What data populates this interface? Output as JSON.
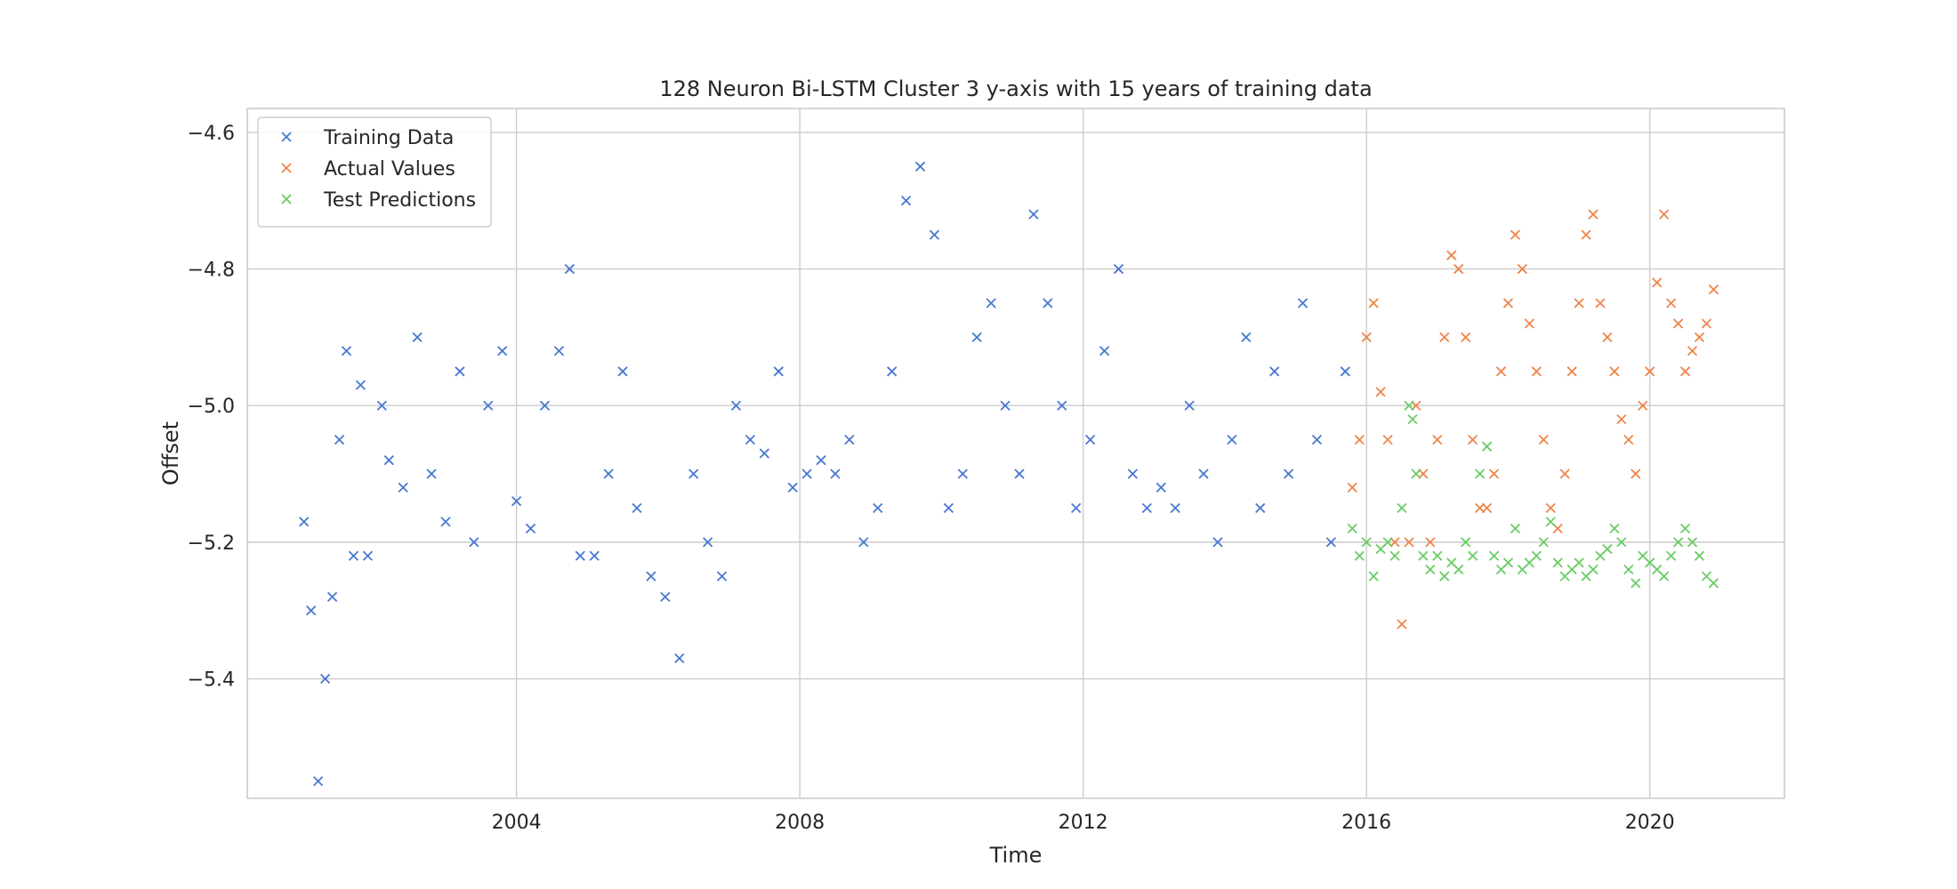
{
  "chart_data": {
    "type": "scatter",
    "title": "128 Neuron Bi-LSTM Cluster 3 y-axis with 15 years of training data",
    "xlabel": "Time",
    "ylabel": "Offset",
    "xlim": [
      2000.2,
      2021.9
    ],
    "ylim": [
      -5.575,
      -4.565
    ],
    "xticks": [
      2004,
      2008,
      2012,
      2016,
      2020
    ],
    "xtick_labels": [
      "2004",
      "2008",
      "2012",
      "2016",
      "2020"
    ],
    "yticks": [
      -4.6,
      -4.8,
      -5.0,
      -5.2,
      -5.4
    ],
    "ytick_labels": [
      "−4.6",
      "−4.8",
      "−5.0",
      "−5.2",
      "−5.4"
    ],
    "grid": true,
    "legend_position": "top-left",
    "marker": "x",
    "series": [
      {
        "name": "Training Data",
        "color": "#4878d0",
        "x": [
          2001.0,
          2001.1,
          2001.2,
          2001.3,
          2001.4,
          2001.5,
          2001.6,
          2001.7,
          2001.8,
          2001.9,
          2002.1,
          2002.2,
          2002.4,
          2002.6,
          2002.8,
          2003.0,
          2003.2,
          2003.4,
          2003.6,
          2003.8,
          2004.0,
          2004.2,
          2004.4,
          2004.6,
          2004.75,
          2004.9,
          2005.1,
          2005.3,
          2005.5,
          2005.7,
          2005.9,
          2006.1,
          2006.3,
          2006.5,
          2006.7,
          2006.9,
          2007.1,
          2007.3,
          2007.5,
          2007.7,
          2007.9,
          2008.1,
          2008.3,
          2008.5,
          2008.7,
          2008.9,
          2009.1,
          2009.3,
          2009.5,
          2009.7,
          2009.9,
          2010.1,
          2010.3,
          2010.5,
          2010.7,
          2010.9,
          2011.1,
          2011.3,
          2011.5,
          2011.7,
          2011.9,
          2012.1,
          2012.3,
          2012.5,
          2012.7,
          2012.9,
          2013.1,
          2013.3,
          2013.5,
          2013.7,
          2013.9,
          2014.1,
          2014.3,
          2014.5,
          2014.7,
          2014.9,
          2015.1,
          2015.3,
          2015.5,
          2015.7
        ],
        "y": [
          -5.17,
          -5.3,
          -5.55,
          -5.4,
          -5.28,
          -5.05,
          -4.92,
          -5.22,
          -4.97,
          -5.22,
          -5.0,
          -5.08,
          -5.12,
          -4.9,
          -5.1,
          -5.17,
          -4.95,
          -5.2,
          -5.0,
          -4.92,
          -5.14,
          -5.18,
          -5.0,
          -4.92,
          -4.8,
          -5.22,
          -5.22,
          -5.1,
          -4.95,
          -5.15,
          -5.25,
          -5.28,
          -5.37,
          -5.1,
          -5.2,
          -5.25,
          -5.0,
          -5.05,
          -5.07,
          -4.95,
          -5.12,
          -5.1,
          -5.08,
          -5.1,
          -5.05,
          -5.2,
          -5.15,
          -4.95,
          -4.7,
          -4.65,
          -4.75,
          -5.15,
          -5.1,
          -4.9,
          -4.85,
          -5.0,
          -5.1,
          -4.72,
          -4.85,
          -5.0,
          -5.15,
          -5.05,
          -4.92,
          -4.8,
          -5.1,
          -5.15,
          -5.12,
          -5.15,
          -5.0,
          -5.1,
          -5.2,
          -5.05,
          -4.9,
          -5.15,
          -4.95,
          -5.1,
          -4.85,
          -5.05,
          -5.2,
          -4.95
        ]
      },
      {
        "name": "Actual Values",
        "color": "#ee854a",
        "x": [
          2015.8,
          2015.9,
          2016.0,
          2016.1,
          2016.2,
          2016.3,
          2016.4,
          2016.5,
          2016.6,
          2016.7,
          2016.8,
          2016.9,
          2017.0,
          2017.1,
          2017.2,
          2017.3,
          2017.4,
          2017.5,
          2017.6,
          2017.7,
          2017.8,
          2017.9,
          2018.0,
          2018.1,
          2018.2,
          2018.3,
          2018.4,
          2018.5,
          2018.6,
          2018.7,
          2018.8,
          2018.9,
          2019.0,
          2019.1,
          2019.2,
          2019.3,
          2019.4,
          2019.5,
          2019.6,
          2019.7,
          2019.8,
          2019.9,
          2020.0,
          2020.1,
          2020.2,
          2020.3,
          2020.4,
          2020.5,
          2020.6,
          2020.7,
          2020.8,
          2020.9
        ],
        "y": [
          -5.12,
          -5.05,
          -4.9,
          -4.85,
          -4.98,
          -5.05,
          -5.2,
          -5.32,
          -5.2,
          -5.0,
          -5.1,
          -5.2,
          -5.05,
          -4.9,
          -4.78,
          -4.8,
          -4.9,
          -5.05,
          -5.15,
          -5.15,
          -5.1,
          -4.95,
          -4.85,
          -4.75,
          -4.8,
          -4.88,
          -4.95,
          -5.05,
          -5.15,
          -5.18,
          -5.1,
          -4.95,
          -4.85,
          -4.75,
          -4.72,
          -4.85,
          -4.9,
          -4.95,
          -5.02,
          -5.05,
          -5.1,
          -5.0,
          -4.95,
          -4.82,
          -4.72,
          -4.85,
          -4.88,
          -4.95,
          -4.92,
          -4.9,
          -4.88,
          -4.83
        ]
      },
      {
        "name": "Test Predictions",
        "color": "#6acc64",
        "x": [
          2015.8,
          2015.9,
          2016.0,
          2016.1,
          2016.2,
          2016.3,
          2016.4,
          2016.5,
          2016.6,
          2016.65,
          2016.7,
          2016.8,
          2016.9,
          2017.0,
          2017.1,
          2017.2,
          2017.3,
          2017.4,
          2017.5,
          2017.6,
          2017.7,
          2017.8,
          2017.9,
          2018.0,
          2018.1,
          2018.2,
          2018.3,
          2018.4,
          2018.5,
          2018.6,
          2018.7,
          2018.8,
          2018.9,
          2019.0,
          2019.1,
          2019.2,
          2019.3,
          2019.4,
          2019.5,
          2019.6,
          2019.7,
          2019.8,
          2019.9,
          2020.0,
          2020.1,
          2020.2,
          2020.3,
          2020.4,
          2020.5,
          2020.6,
          2020.7,
          2020.8,
          2020.9
        ],
        "y": [
          -5.18,
          -5.22,
          -5.2,
          -5.25,
          -5.21,
          -5.2,
          -5.22,
          -5.15,
          -5.0,
          -5.02,
          -5.1,
          -5.22,
          -5.24,
          -5.22,
          -5.25,
          -5.23,
          -5.24,
          -5.2,
          -5.22,
          -5.1,
          -5.06,
          -5.22,
          -5.24,
          -5.23,
          -5.18,
          -5.24,
          -5.23,
          -5.22,
          -5.2,
          -5.17,
          -5.23,
          -5.25,
          -5.24,
          -5.23,
          -5.25,
          -5.24,
          -5.22,
          -5.21,
          -5.18,
          -5.2,
          -5.24,
          -5.26,
          -5.22,
          -5.23,
          -5.24,
          -5.25,
          -5.22,
          -5.2,
          -5.18,
          -5.2,
          -5.22,
          -5.25,
          -5.26
        ]
      }
    ]
  }
}
